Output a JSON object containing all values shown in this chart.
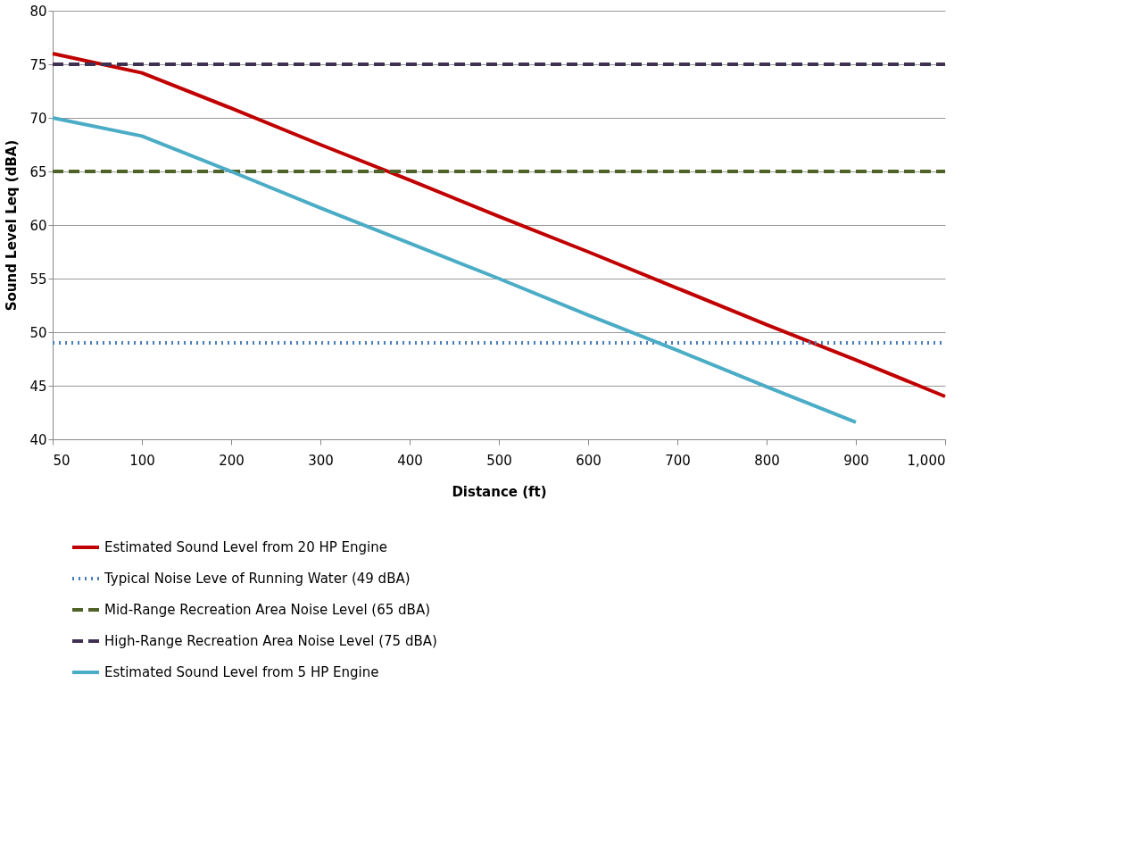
{
  "chart_data": {
    "type": "line",
    "xlabel": "Distance (ft)",
    "ylabel": "Sound Level Leq (dBA)",
    "categories": [
      "50",
      "100",
      "200",
      "300",
      "400",
      "500",
      "600",
      "700",
      "800",
      "900",
      "1,000"
    ],
    "ylim": [
      40,
      80
    ],
    "yticks": [
      40,
      45,
      50,
      55,
      60,
      65,
      70,
      75,
      80
    ],
    "grid": "y",
    "legend": "bottom",
    "marker": "none",
    "series": [
      {
        "name": "Estimated Sound Level from 20 HP Engine",
        "color": "#c00000",
        "line_style": "solid",
        "values": [
          76,
          74.2,
          70.9,
          67.5,
          64.2,
          60.8,
          57.5,
          54.1,
          50.7,
          47.4,
          44
        ]
      },
      {
        "name": "Typical Noise Leve of Running Water (49 dBA)",
        "color": "#4a7ebb",
        "line_style": "dotted",
        "values": [
          49,
          49,
          49,
          49,
          49,
          49,
          49,
          49,
          49,
          49,
          49
        ]
      },
      {
        "name": "Mid-Range Recreation Area Noise Level (65 dBA)",
        "color": "#4f6228",
        "line_style": "dashed",
        "values": [
          65,
          65,
          65,
          65,
          65,
          65,
          65,
          65,
          65,
          65,
          65
        ]
      },
      {
        "name": "High-Range Recreation Area Noise Level (75 dBA)",
        "color": "#3f3151",
        "line_style": "dashed",
        "values": [
          75,
          75,
          75,
          75,
          75,
          75,
          75,
          75,
          75,
          75,
          75
        ]
      },
      {
        "name": "Estimated Sound Level from 5 HP Engine",
        "color": "#4bacc6",
        "line_style": "solid",
        "values": [
          70,
          68.3,
          65,
          61.6,
          58.3,
          55,
          51.6,
          48.3,
          44.9,
          41.6,
          null
        ]
      }
    ]
  }
}
